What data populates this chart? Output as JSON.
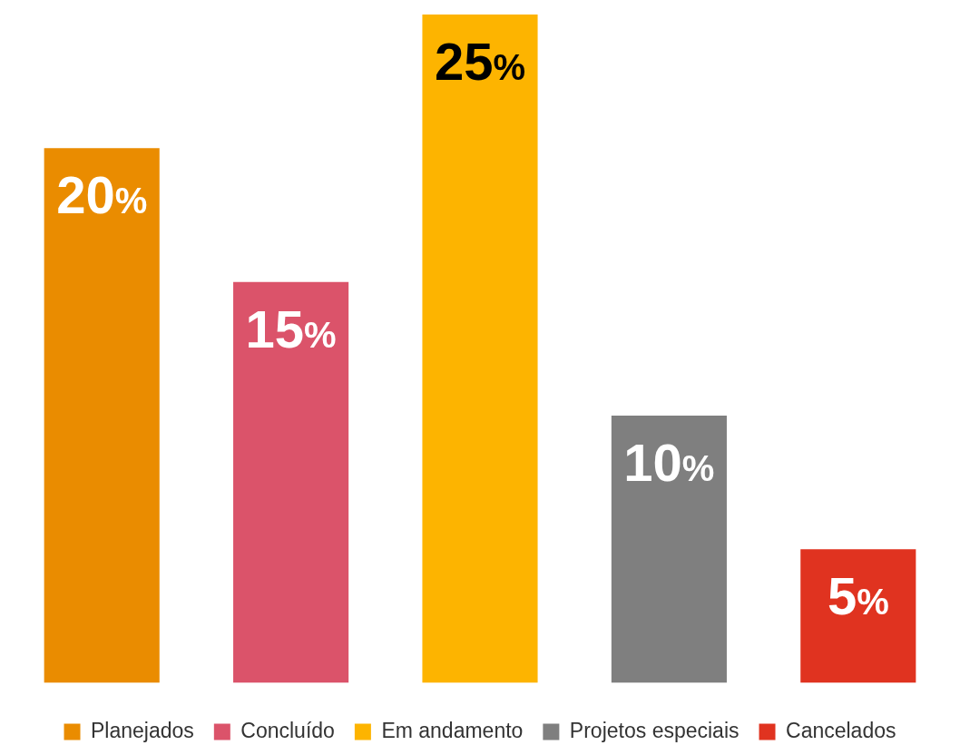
{
  "chart_data": {
    "type": "bar",
    "categories": [
      null,
      null,
      null,
      null,
      null
    ],
    "series": [
      {
        "name": "Planejados",
        "color": "#ea8c00",
        "values": [
          20,
          null,
          null,
          null,
          null
        ],
        "value_labels": [
          "20%",
          null,
          null,
          null,
          null
        ]
      },
      {
        "name": "Concluído",
        "color": "#db536a",
        "values": [
          null,
          15,
          null,
          null,
          null
        ],
        "value_labels": [
          null,
          "15%",
          null,
          null,
          null
        ]
      },
      {
        "name": "Em andamento",
        "color": "#fdb400",
        "values": [
          null,
          null,
          25,
          null,
          null
        ],
        "value_labels": [
          null,
          null,
          "25%",
          null,
          null
        ]
      },
      {
        "name": "Projetos especiais",
        "color": "#7f7f7f",
        "values": [
          null,
          null,
          null,
          10,
          null
        ],
        "value_labels": [
          null,
          null,
          null,
          "10%",
          null
        ]
      },
      {
        "name": "Cancelados",
        "color": "#e03320",
        "values": [
          null,
          null,
          null,
          null,
          5
        ],
        "value_labels": [
          null,
          null,
          null,
          null,
          "5%"
        ]
      }
    ],
    "stacked": true,
    "ylim": [
      0,
      25
    ],
    "legend": "bottom"
  }
}
